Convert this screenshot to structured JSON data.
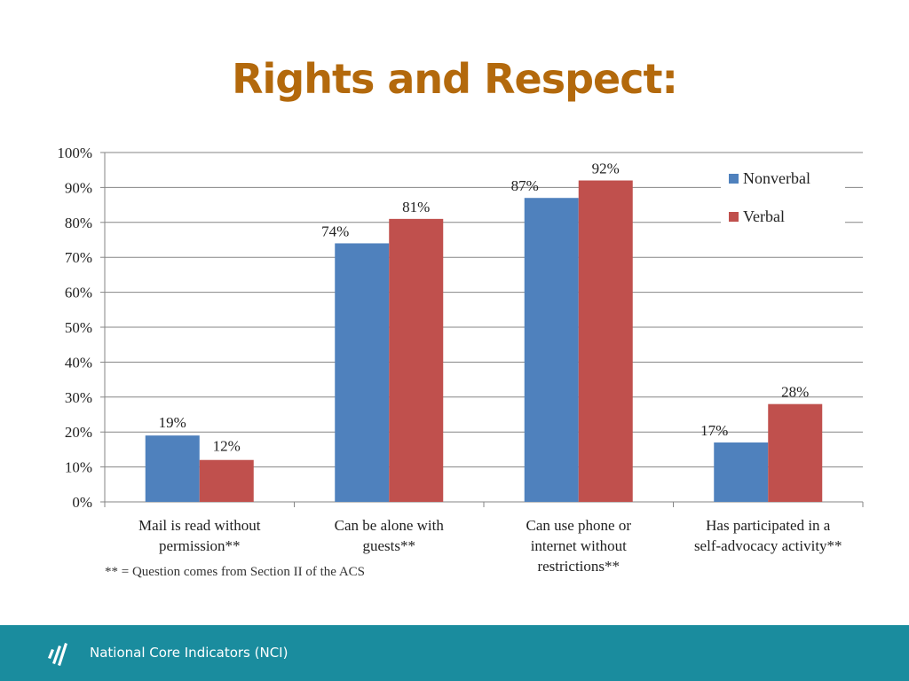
{
  "title": "Rights and Respect:",
  "colors": {
    "title": "#B3690C",
    "nonverbal": "#4F81BD",
    "verbal": "#C0504D",
    "footer_bg": "#1A8C9E",
    "gridline": "#868686"
  },
  "footnote": "** = Question comes from Section II of the ACS",
  "footer": {
    "text": "National Core Indicators (NCI)",
    "logo_icon": "nci-logo-icon"
  },
  "chart_data": {
    "type": "bar",
    "categories": [
      [
        "Mail is read without",
        "permission**"
      ],
      [
        "Can be alone with",
        "guests**"
      ],
      [
        "Can use phone or",
        "internet without",
        "restrictions**"
      ],
      [
        "Has participated in a",
        "self-advocacy activity**"
      ]
    ],
    "series": [
      {
        "name": "Nonverbal",
        "values": [
          19,
          74,
          87,
          17
        ],
        "labels": [
          "19%",
          "74%",
          "87%",
          "17%"
        ]
      },
      {
        "name": "Verbal",
        "values": [
          12,
          81,
          92,
          28
        ],
        "labels": [
          "12%",
          "81%",
          "92%",
          "28%"
        ]
      }
    ],
    "ylim": [
      0,
      100
    ],
    "yticks": [
      "0%",
      "10%",
      "20%",
      "30%",
      "40%",
      "50%",
      "60%",
      "70%",
      "80%",
      "90%",
      "100%"
    ],
    "grid": true,
    "legend_position": "top-right"
  }
}
